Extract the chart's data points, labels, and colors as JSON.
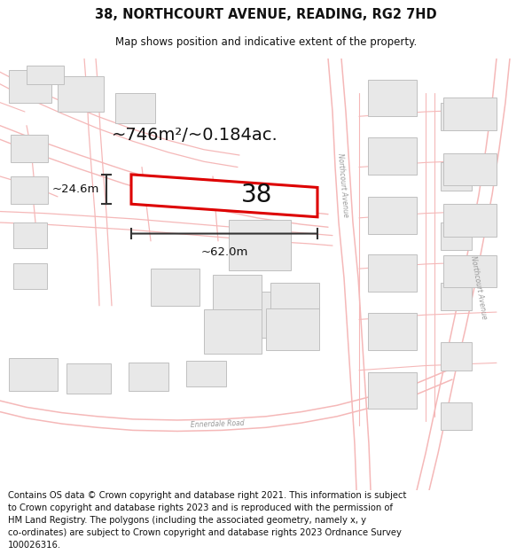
{
  "title_line1": "38, NORTHCOURT AVENUE, READING, RG2 7HD",
  "title_line2": "Map shows position and indicative extent of the property.",
  "copyright_text": "Contains OS data © Crown copyright and database right 2021. This information is subject to Crown copyright and database rights 2023 and is reproduced with the permission of HM Land Registry. The polygons (including the associated geometry, namely x, y co-ordinates) are subject to Crown copyright and database rights 2023 Ordnance Survey 100026316.",
  "area_label": "~746m²/~0.184ac.",
  "width_label": "~62.0m",
  "height_label": "~24.6m",
  "property_number": "38",
  "road_color": "#f5b8b8",
  "road_color2": "#e8a0a0",
  "building_fill": "#e8e8e8",
  "building_edge": "#c0c0c0",
  "property_stroke": "#dd0000",
  "title_color": "#111111",
  "footer_color": "#111111",
  "footer_fontsize": 7.2,
  "title_fontsize1": 10.5,
  "title_fontsize2": 8.5,
  "area_fontsize": 14,
  "number_fontsize": 20,
  "dim_fontsize": 9.5
}
